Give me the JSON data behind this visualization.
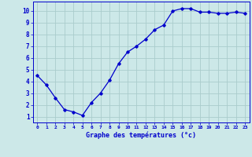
{
  "x": [
    0,
    1,
    2,
    3,
    4,
    5,
    6,
    7,
    8,
    9,
    10,
    11,
    12,
    13,
    14,
    15,
    16,
    17,
    18,
    19,
    20,
    21,
    22,
    23
  ],
  "y": [
    4.5,
    3.7,
    2.6,
    1.6,
    1.4,
    1.1,
    2.2,
    3.0,
    4.1,
    5.5,
    6.5,
    7.0,
    7.6,
    8.4,
    8.8,
    10.0,
    10.2,
    10.2,
    9.9,
    9.9,
    9.8,
    9.8,
    9.9,
    9.8
  ],
  "xlabel": "Graphe des températures (°c)",
  "xlim": [
    -0.5,
    23.5
  ],
  "ylim": [
    0.5,
    10.8
  ],
  "yticks": [
    1,
    2,
    3,
    4,
    5,
    6,
    7,
    8,
    9,
    10
  ],
  "xticks": [
    0,
    1,
    2,
    3,
    4,
    5,
    6,
    7,
    8,
    9,
    10,
    11,
    12,
    13,
    14,
    15,
    16,
    17,
    18,
    19,
    20,
    21,
    22,
    23
  ],
  "line_color": "#0000cc",
  "marker": "D",
  "marker_size": 1.8,
  "bg_color": "#cce8e8",
  "grid_color": "#aacccc",
  "xlabel_color": "#0000cc",
  "tick_label_color": "#0000cc"
}
